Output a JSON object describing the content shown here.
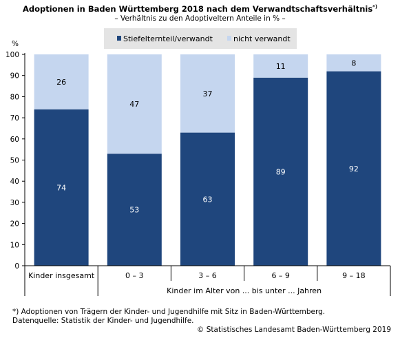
{
  "title": "Adoptionen in Baden Württemberg 2018 nach dem Verwandtschaftsverhältnis",
  "title_marker": "*)",
  "subtitle": "– Verhältnis zu den Adoptiveltern Anteile in % –",
  "footnote_line1": "*) Adoptionen von Trägern der Kinder- und Jugendhilfe mit Sitz in Baden-Württemberg.",
  "footnote_line2": "Datenquelle: Statistik der Kinder- und Jugendhilfe.",
  "copyright": "© Statistisches Landesamt Baden-Württemberg 2019",
  "chart_data": {
    "type": "bar",
    "stacked": true,
    "ylabel": "%",
    "ylim": [
      0,
      100
    ],
    "yticks": [
      0,
      10,
      20,
      30,
      40,
      50,
      60,
      70,
      80,
      90,
      100
    ],
    "categories": [
      "Kinder insgesamt",
      "0 – 3",
      "3 – 6",
      "6 – 9",
      "9  – 18"
    ],
    "group_label": "Kinder im Alter von ... bis unter ... Jahren",
    "series": [
      {
        "name": "Stiefelternteil/verwandt",
        "values": [
          74,
          53,
          63,
          89,
          92
        ],
        "color": "#1f467d",
        "label_color": "#ffffff"
      },
      {
        "name": "nicht verwandt",
        "values": [
          26,
          47,
          37,
          11,
          8
        ],
        "color": "#c5d6ef",
        "label_color": "#000000"
      }
    ],
    "legend_position": "top",
    "grid": false
  }
}
